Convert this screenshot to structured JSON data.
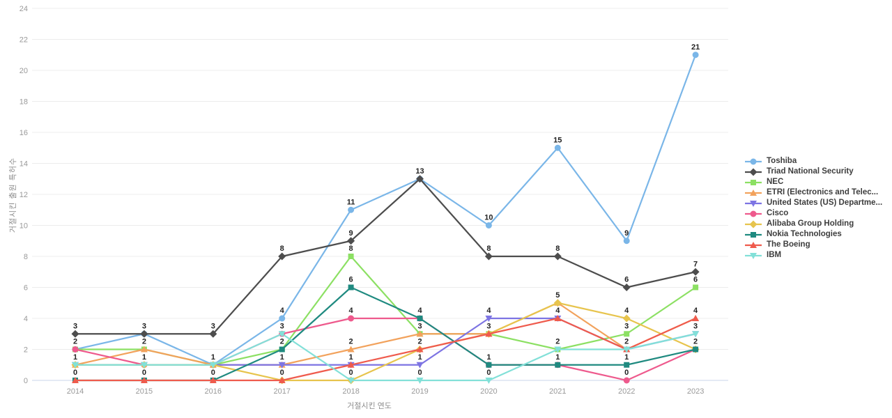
{
  "chart_data": {
    "type": "line",
    "x": [
      2014,
      2015,
      2016,
      2017,
      2018,
      2019,
      2020,
      2021,
      2022,
      2023
    ],
    "series": [
      {
        "name": "Toshiba",
        "color": "#7ab6e8",
        "marker": "circle",
        "values": [
          2,
          3,
          1,
          4,
          11,
          13,
          10,
          15,
          9,
          21
        ]
      },
      {
        "name": "Triad National Security",
        "color": "#4d4d4d",
        "marker": "diamond",
        "values": [
          3,
          3,
          3,
          8,
          9,
          13,
          8,
          8,
          6,
          7
        ]
      },
      {
        "name": "NEC",
        "color": "#8ce063",
        "marker": "square",
        "values": [
          2,
          2,
          1,
          2,
          8,
          3,
          3,
          2,
          3,
          6
        ]
      },
      {
        "name": "ETRI (Electronics and Telec...",
        "color": "#f2a25c",
        "marker": "triangle-up",
        "values": [
          1,
          2,
          1,
          1,
          2,
          3,
          3,
          5,
          2,
          4
        ]
      },
      {
        "name": "United States (US) Departme...",
        "color": "#7d74e3",
        "marker": "triangle-down",
        "values": [
          1,
          1,
          1,
          1,
          1,
          1,
          4,
          4,
          2,
          3
        ]
      },
      {
        "name": "Cisco",
        "color": "#ee5a8d",
        "marker": "circle",
        "values": [
          2,
          1,
          1,
          3,
          4,
          4,
          1,
          1,
          0,
          2
        ]
      },
      {
        "name": "Alibaba Group Holding",
        "color": "#e7c44d",
        "marker": "diamond",
        "values": [
          1,
          1,
          1,
          0,
          0,
          2,
          3,
          5,
          4,
          2
        ]
      },
      {
        "name": "Nokia Technologies",
        "color": "#1f8a80",
        "marker": "square",
        "values": [
          0,
          0,
          0,
          2,
          6,
          4,
          1,
          1,
          1,
          2
        ]
      },
      {
        "name": "The Boeing",
        "color": "#ef5b4d",
        "marker": "triangle-up",
        "values": [
          0,
          0,
          0,
          0,
          1,
          2,
          3,
          4,
          2,
          4
        ]
      },
      {
        "name": "IBM",
        "color": "#82e0d8",
        "marker": "triangle-down",
        "values": [
          1,
          1,
          1,
          3,
          0,
          0,
          0,
          2,
          2,
          3
        ]
      }
    ],
    "xlabel": "거절시킨 연도",
    "ylabel": "거절시킨 출원 특허수",
    "ylim": [
      0,
      24
    ],
    "yticks": [
      0,
      2,
      4,
      6,
      8,
      10,
      12,
      14,
      16,
      18,
      20,
      22,
      24
    ],
    "grid": "horizontal",
    "legend_position": "right",
    "colors": {
      "grid_line": "#ececec",
      "zero_line": "#c9d6ea",
      "tick_label": "#999999",
      "data_label": "#222222",
      "legend_text": "#3d3d3d"
    }
  }
}
